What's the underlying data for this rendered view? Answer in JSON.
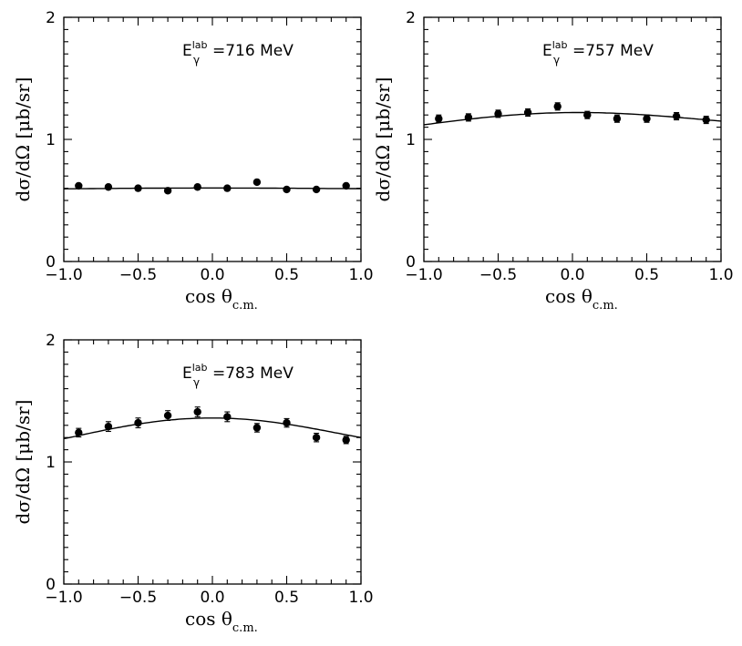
{
  "chart_data": [
    {
      "type": "scatter",
      "annotation": {
        "main": "E",
        "sup": "lab",
        "sub": "γ",
        "rest": "=716  MeV"
      },
      "xlabel": {
        "main": "cos θ",
        "sub": "c.m."
      },
      "ylabel": "dσ/dΩ  [μb/sr]",
      "xlim": [
        -1.0,
        1.0
      ],
      "ylim": [
        0,
        2
      ],
      "xticks": [
        "-1.0",
        "-0.5",
        "0.0",
        "0.5",
        "1.0"
      ],
      "yticks": [
        "0",
        "1",
        "2"
      ],
      "series": [
        {
          "x": [
            -0.9,
            -0.7,
            -0.5,
            -0.3,
            -0.1,
            0.1,
            0.3,
            0.5,
            0.7,
            0.9
          ],
          "y": [
            0.62,
            0.61,
            0.6,
            0.58,
            0.61,
            0.6,
            0.65,
            0.59,
            0.59,
            0.62
          ],
          "err": [
            0.015,
            0.015,
            0.015,
            0.015,
            0.015,
            0.015,
            0.015,
            0.015,
            0.015,
            0.015
          ]
        }
      ],
      "fit": {
        "x": [
          -1.0,
          -0.5,
          0.0,
          0.5,
          1.0
        ],
        "y": [
          0.595,
          0.6,
          0.602,
          0.6,
          0.597
        ]
      }
    },
    {
      "type": "scatter",
      "annotation": {
        "main": "E",
        "sup": "lab",
        "sub": "γ",
        "rest": "=757  MeV"
      },
      "xlabel": {
        "main": "cos θ",
        "sub": "c.m."
      },
      "ylabel": "dσ/dΩ  [μb/sr]",
      "xlim": [
        -1.0,
        1.0
      ],
      "ylim": [
        0,
        2
      ],
      "xticks": [
        "-1.0",
        "-0.5",
        "0.0",
        "0.5",
        "1.0"
      ],
      "yticks": [
        "0",
        "1",
        "2"
      ],
      "series": [
        {
          "x": [
            -0.9,
            -0.7,
            -0.5,
            -0.3,
            -0.1,
            0.1,
            0.3,
            0.5,
            0.7,
            0.9
          ],
          "y": [
            1.17,
            1.18,
            1.21,
            1.22,
            1.27,
            1.2,
            1.17,
            1.17,
            1.19,
            1.16
          ],
          "err": [
            0.03,
            0.03,
            0.03,
            0.03,
            0.03,
            0.03,
            0.03,
            0.03,
            0.03,
            0.03
          ]
        }
      ],
      "fit": {
        "x": [
          -1.0,
          -0.5,
          0.0,
          0.5,
          1.0
        ],
        "y": [
          1.12,
          1.19,
          1.22,
          1.2,
          1.15
        ]
      }
    },
    {
      "type": "scatter",
      "annotation": {
        "main": "E",
        "sup": "lab",
        "sub": "γ",
        "rest": "=783  MeV"
      },
      "xlabel": {
        "main": "cos θ",
        "sub": "c.m."
      },
      "ylabel": "dσ/dΩ  [μb/sr]",
      "xlim": [
        -1.0,
        1.0
      ],
      "ylim": [
        0,
        2
      ],
      "xticks": [
        "-1.0",
        "-0.5",
        "0.0",
        "0.5",
        "1.0"
      ],
      "yticks": [
        "0",
        "1",
        "2"
      ],
      "series": [
        {
          "x": [
            -0.9,
            -0.7,
            -0.5,
            -0.3,
            -0.1,
            0.1,
            0.3,
            0.5,
            0.7,
            0.9
          ],
          "y": [
            1.24,
            1.29,
            1.32,
            1.38,
            1.41,
            1.37,
            1.28,
            1.32,
            1.2,
            1.18
          ],
          "err": [
            0.035,
            0.04,
            0.04,
            0.04,
            0.04,
            0.04,
            0.035,
            0.035,
            0.035,
            0.03
          ]
        }
      ],
      "fit": {
        "x": [
          -1.0,
          -0.5,
          0.0,
          0.5,
          1.0
        ],
        "y": [
          1.19,
          1.31,
          1.36,
          1.31,
          1.2
        ]
      }
    }
  ]
}
